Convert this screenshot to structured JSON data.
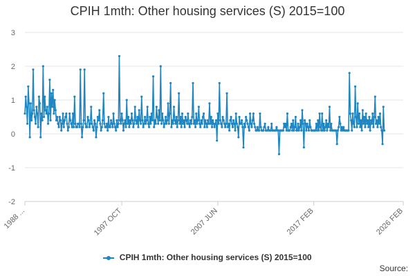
{
  "chart_data": {
    "type": "line",
    "title": "CPIH 1mth: Other housing services (S) 2015=100",
    "xlabel": "",
    "ylabel": "",
    "ylim": [
      -2,
      3
    ],
    "yticks": [
      3,
      2,
      1,
      0,
      -1,
      -2
    ],
    "x_start": "1988 JAN",
    "x_end": "2026 FEB",
    "n_months": 458,
    "x_tick_labels": [
      {
        "label": "1988 ...",
        "index": 0
      },
      {
        "label": "1997 OCT",
        "index": 117
      },
      {
        "label": "2007 JUN",
        "index": 233
      },
      {
        "label": "2017 FEB",
        "index": 349
      },
      {
        "label": "2026 FEB",
        "index": 457
      }
    ],
    "color": "#1f86c2",
    "series": [
      {
        "name": "CPIH 1mth: Other housing services (S) 2015=100",
        "values": [
          0.6,
          1.1,
          0.8,
          0.3,
          1.4,
          0.9,
          -0.1,
          0.9,
          0.4,
          0.6,
          1.9,
          0.7,
          0.5,
          0.3,
          0.8,
          0.6,
          0.2,
          1.1,
          0.9,
          -0.1,
          0.6,
          0.4,
          2.0,
          0.5,
          1.1,
          0.7,
          0.6,
          0.8,
          0.3,
          0.6,
          1.6,
          0.4,
          1.2,
          0.8,
          1.3,
          0.6,
          1.0,
          0.7,
          0.4,
          0.5,
          0.3,
          0.2,
          0.5,
          0.4,
          0.1,
          0.3,
          0.6,
          0.2,
          0.4,
          0.5,
          0.6,
          0.3,
          0.1,
          0.2,
          0.6,
          0.4,
          0.3,
          0.2,
          0.6,
          0.2,
          1.1,
          0.3,
          0.2,
          0.2,
          0.3,
          0.3,
          0.2,
          1.9,
          0.3,
          -0.1,
          0.2,
          0.4,
          1.9,
          0.3,
          0.2,
          0.2,
          0.5,
          0.4,
          0.2,
          0.3,
          0.8,
          0.3,
          0.2,
          0.1,
          0.4,
          0.3,
          -0.1,
          0.2,
          0.5,
          0.4,
          0.7,
          0.3,
          0.1,
          0.2,
          0.4,
          1.2,
          0.3,
          0.2,
          0.2,
          0.3,
          0.1,
          0.5,
          0.2,
          0.2,
          0.4,
          0.3,
          0.2,
          0.6,
          0.3,
          0.2,
          0.1,
          0.4,
          0.2,
          0.3,
          2.3,
          0.4,
          0.3,
          0.6,
          0.4,
          0.1,
          0.3,
          0.4,
          0.2,
          1.0,
          0.3,
          0.5,
          0.2,
          0.4,
          0.3,
          0.6,
          0.4,
          0.2,
          0.3,
          0.8,
          0.4,
          0.3,
          0.5,
          0.2,
          0.7,
          0.4,
          0.3,
          1.1,
          0.4,
          0.2,
          0.3,
          0.5,
          0.3,
          0.4,
          0.8,
          0.3,
          0.2,
          0.5,
          0.3,
          0.6,
          0.4,
          1.7,
          0.2,
          0.4,
          0.3,
          0.8,
          0.5,
          0.3,
          0.7,
          0.4,
          2.0,
          0.3,
          0.6,
          0.4,
          0.2,
          0.3,
          0.5,
          0.3,
          0.4,
          0.9,
          0.3,
          0.6,
          1.5,
          0.2,
          0.4,
          0.3,
          0.8,
          0.4,
          0.3,
          0.5,
          0.2,
          0.4,
          1.2,
          0.3,
          0.5,
          0.2,
          0.6,
          0.3,
          0.4,
          0.2,
          0.5,
          0.4,
          0.3,
          0.6,
          0.3,
          0.2,
          0.4,
          0.3,
          0.5,
          1.5,
          0.3,
          0.4,
          0.2,
          0.6,
          0.3,
          0.4,
          0.8,
          0.3,
          0.2,
          0.4,
          0.3,
          0.5,
          0.6,
          0.2,
          0.4,
          0.3,
          0.2,
          0.4,
          0.3,
          0.9,
          0.3,
          0.5,
          0.2,
          0.4,
          0.3,
          0.2,
          0.3,
          0.4,
          -0.2,
          0.6,
          0.3,
          1.5,
          0.4,
          0.3,
          0.2,
          0.5,
          0.4,
          0.3,
          0.2,
          0.3,
          1.2,
          0.2,
          0.3,
          0.1,
          0.4,
          0.5,
          0.3,
          0.2,
          0.4,
          0.3,
          0.1,
          0.6,
          0.3,
          0.2,
          -0.1,
          0.5,
          0.3,
          0.3,
          0.4,
          0.2,
          -0.4,
          0.3,
          0.2,
          0.5,
          0.4,
          0.3,
          0.2,
          0.1,
          0.6,
          0.3,
          0.2,
          0.4,
          0.6,
          0.3,
          0.2,
          0.1,
          0.1,
          0.2,
          0.1,
          0.1,
          0.6,
          0.2,
          0.1,
          0.1,
          0.1,
          0.2,
          0.3,
          0.1,
          0.1,
          0.1,
          0.2,
          0.1,
          0.1,
          0.1,
          0.3,
          0.1,
          0.1,
          0.1,
          0.1,
          0.1,
          0.2,
          0.1,
          0.1,
          -0.6,
          0.1,
          0.1,
          0.1,
          0.1,
          0.1,
          0.3,
          0.2,
          0.3,
          0.1,
          0.6,
          0.1,
          0.1,
          0.1,
          0.2,
          0.3,
          0.1,
          0.4,
          0.1,
          0.2,
          0.5,
          0.1,
          0.1,
          0.3,
          0.1,
          0.2,
          0.4,
          0.1,
          0.7,
          0.3,
          -0.4,
          0.4,
          0.3,
          0.1,
          0.3,
          0.2,
          0.1,
          0.4,
          0.2,
          0.1,
          0.1,
          0.1,
          0.1,
          0.1,
          0.1,
          0.3,
          0.1,
          0.4,
          0.1,
          0.6,
          0.2,
          0.1,
          0.6,
          0.1,
          0.3,
          0.1,
          0.2,
          0.4,
          0.1,
          0.3,
          0.2,
          0.8,
          0.1,
          0.3,
          0.1,
          0.1,
          0.1,
          0.1,
          0.1,
          0.1,
          -0.3,
          0.1,
          0.2,
          0.5,
          0.3,
          0.1,
          0.2,
          0.1,
          0.2,
          0.1,
          0.1,
          0.1,
          0.1,
          0.1,
          0.1,
          1.8,
          0.6,
          0.4,
          0.1,
          0.6,
          0.3,
          0.2,
          1.4,
          0.5,
          0.2,
          0.9,
          0.3,
          0.6,
          0.2,
          0.4,
          0.1,
          0.7,
          0.3,
          0.5,
          0.2,
          0.6,
          0.3,
          0.4,
          0.2,
          0.5,
          0.1,
          0.4,
          0.3,
          0.6,
          0.2,
          0.5,
          1.1,
          0.3,
          0.4,
          0.2,
          0.5,
          0.3,
          0.6,
          0.2,
          0.1,
          -0.3,
          0.8,
          0.1
        ]
      }
    ]
  },
  "legend": {
    "label": "CPIH 1mth: Other housing services (S) 2015=100"
  },
  "source": {
    "label": "Source:"
  }
}
